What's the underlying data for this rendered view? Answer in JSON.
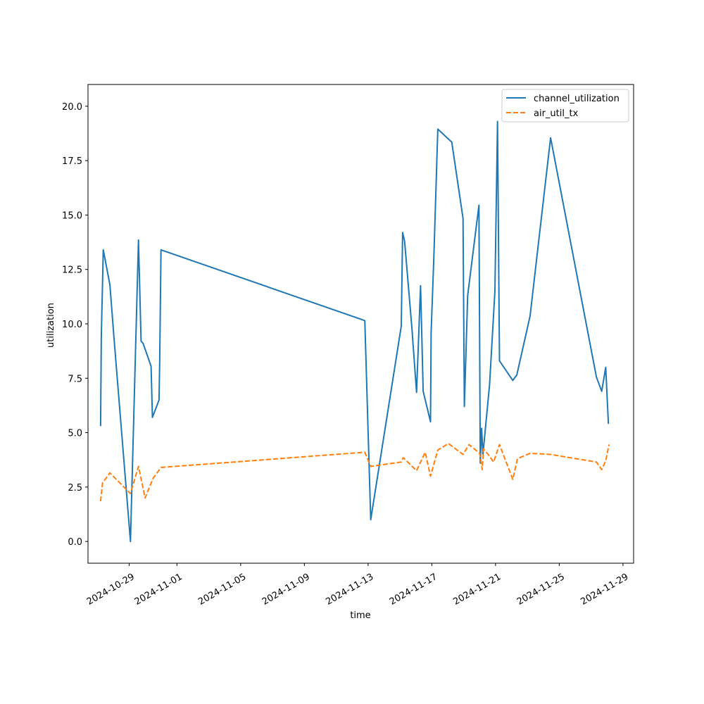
{
  "chart_data": {
    "type": "line",
    "xlabel": "time",
    "ylabel": "utilization",
    "x_ticks": [
      "2024-10-29",
      "2024-11-01",
      "2024-11-05",
      "2024-11-09",
      "2024-11-13",
      "2024-11-17",
      "2024-11-21",
      "2024-11-25",
      "2024-11-29"
    ],
    "y_ticks": [
      "0.0",
      "2.5",
      "5.0",
      "7.5",
      "10.0",
      "12.5",
      "15.0",
      "17.5",
      "20.0"
    ],
    "ylim": [
      -1.0,
      21.0
    ],
    "xlim": [
      "2024-10-26T10:00",
      "2024-11-29T16:00"
    ],
    "grid": false,
    "legend_position": "top-right",
    "colors": {
      "channel_utilization": "#1f77b4",
      "air_util_tx": "#ff7f0e"
    },
    "series": [
      {
        "name": "channel_utilization",
        "style": "solid",
        "points": [
          [
            "2024-10-27T05:00",
            5.3
          ],
          [
            "2024-10-27T06:00",
            9.4
          ],
          [
            "2024-10-27T09:00",
            13.4
          ],
          [
            "2024-10-27T19:00",
            11.8
          ],
          [
            "2024-10-28T01:00",
            9.4
          ],
          [
            "2024-10-29T02:00",
            0.0
          ],
          [
            "2024-10-29T14:00",
            13.85
          ],
          [
            "2024-10-29T18:00",
            9.2
          ],
          [
            "2024-10-29T21:00",
            9.1
          ],
          [
            "2024-10-30T09:00",
            8.05
          ],
          [
            "2024-10-30T11:00",
            5.7
          ],
          [
            "2024-10-30T21:00",
            6.5
          ],
          [
            "2024-10-30T22:00",
            8.2
          ],
          [
            "2024-10-31T00:00",
            13.4
          ],
          [
            "2024-11-12T19:00",
            10.15
          ],
          [
            "2024-11-13T04:00",
            1.0
          ],
          [
            "2024-11-15T02:00",
            9.9
          ],
          [
            "2024-11-15T04:00",
            14.2
          ],
          [
            "2024-11-15T07:00",
            13.8
          ],
          [
            "2024-11-15T18:00",
            9.8
          ],
          [
            "2024-11-16T01:00",
            6.85
          ],
          [
            "2024-11-16T07:00",
            11.75
          ],
          [
            "2024-11-16T11:00",
            6.9
          ],
          [
            "2024-11-16T22:00",
            5.5
          ],
          [
            "2024-11-16T23:00",
            9.6
          ],
          [
            "2024-11-17T03:00",
            13.0
          ],
          [
            "2024-11-17T09:00",
            18.95
          ],
          [
            "2024-11-18T06:00",
            18.35
          ],
          [
            "2024-11-18T23:00",
            14.85
          ],
          [
            "2024-11-19T01:00",
            6.2
          ],
          [
            "2024-11-19T06:00",
            11.3
          ],
          [
            "2024-11-19T23:00",
            15.45
          ],
          [
            "2024-11-20T01:00",
            3.6
          ],
          [
            "2024-11-20T03:00",
            5.2
          ],
          [
            "2024-11-20T05:00",
            4.0
          ],
          [
            "2024-11-20T15:00",
            7.2
          ],
          [
            "2024-11-20T23:00",
            11.5
          ],
          [
            "2024-11-21T03:00",
            19.3
          ],
          [
            "2024-11-21T06:00",
            8.3
          ],
          [
            "2024-11-22T02:00",
            7.4
          ],
          [
            "2024-11-22T08:00",
            7.65
          ],
          [
            "2024-11-23T04:00",
            10.35
          ],
          [
            "2024-11-24T11:00",
            18.55
          ],
          [
            "2024-11-27T08:00",
            7.55
          ],
          [
            "2024-11-27T16:00",
            6.9
          ],
          [
            "2024-11-27T22:00",
            8.0
          ],
          [
            "2024-11-28T02:00",
            5.4
          ]
        ]
      },
      {
        "name": "air_util_tx",
        "style": "dashed",
        "points": [
          [
            "2024-10-27T05:00",
            1.85
          ],
          [
            "2024-10-27T08:00",
            2.7
          ],
          [
            "2024-10-27T13:00",
            2.9
          ],
          [
            "2024-10-27T19:00",
            3.15
          ],
          [
            "2024-10-29T02:00",
            2.2
          ],
          [
            "2024-10-29T14:00",
            3.45
          ],
          [
            "2024-10-30T00:00",
            2.0
          ],
          [
            "2024-10-30T12:00",
            2.9
          ],
          [
            "2024-10-31T00:00",
            3.4
          ],
          [
            "2024-11-12T19:00",
            4.1
          ],
          [
            "2024-11-13T04:00",
            3.45
          ],
          [
            "2024-11-15T02:00",
            3.65
          ],
          [
            "2024-11-15T05:00",
            3.85
          ],
          [
            "2024-11-16T01:00",
            3.25
          ],
          [
            "2024-11-16T14:00",
            4.1
          ],
          [
            "2024-11-16T22:00",
            3.0
          ],
          [
            "2024-11-17T09:00",
            4.2
          ],
          [
            "2024-11-18T01:00",
            4.5
          ],
          [
            "2024-11-18T23:00",
            4.0
          ],
          [
            "2024-11-19T08:00",
            4.45
          ],
          [
            "2024-11-20T00:00",
            4.05
          ],
          [
            "2024-11-20T04:00",
            3.3
          ],
          [
            "2024-11-20T06:00",
            4.25
          ],
          [
            "2024-11-20T13:00",
            4.0
          ],
          [
            "2024-11-20T21:00",
            3.65
          ],
          [
            "2024-11-21T06:00",
            4.45
          ],
          [
            "2024-11-22T02:00",
            2.85
          ],
          [
            "2024-11-22T09:00",
            3.8
          ],
          [
            "2024-11-23T04:00",
            4.05
          ],
          [
            "2024-11-24T11:00",
            4.0
          ],
          [
            "2024-11-27T08:00",
            3.65
          ],
          [
            "2024-11-27T16:00",
            3.3
          ],
          [
            "2024-11-27T22:00",
            3.7
          ],
          [
            "2024-11-28T03:00",
            4.45
          ]
        ]
      }
    ]
  }
}
